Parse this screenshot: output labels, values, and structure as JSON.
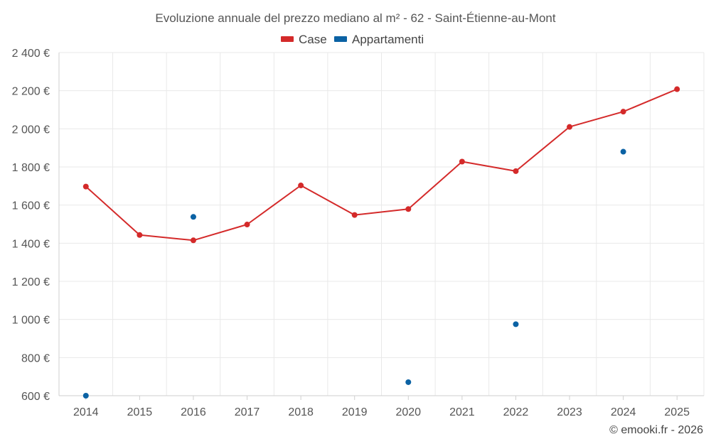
{
  "chart_data": {
    "type": "line",
    "title": "Evoluzione annuale del prezzo mediano al m² - 62 - Saint-Étienne-au-Mont",
    "categories": [
      "2014",
      "2015",
      "2016",
      "2017",
      "2018",
      "2019",
      "2020",
      "2021",
      "2022",
      "2023",
      "2024",
      "2025"
    ],
    "series": [
      {
        "name": "Case",
        "color": "#d42a2a",
        "style": "line-with-markers",
        "values": [
          1697,
          1443,
          1415,
          1498,
          1703,
          1548,
          1579,
          1828,
          1778,
          2010,
          2090,
          2208
        ]
      },
      {
        "name": "Appartamenti",
        "color": "#0b62a4",
        "style": "markers-only",
        "values": [
          600,
          null,
          1538,
          null,
          null,
          null,
          671,
          null,
          975,
          null,
          1880,
          null
        ]
      }
    ],
    "ylim": [
      600,
      2400
    ],
    "yticks": [
      600,
      800,
      1000,
      1200,
      1400,
      1600,
      1800,
      2000,
      2200,
      2400
    ],
    "ytick_labels": [
      "600 €",
      "800 €",
      "1 000 €",
      "1 200 €",
      "1 400 €",
      "1 600 €",
      "1 800 €",
      "2 000 €",
      "2 200 €",
      "2 400 €"
    ],
    "xlabel": "",
    "ylabel": "",
    "grid": true,
    "legend_position": "top-center"
  },
  "credit": "© emooki.fr - 2026"
}
